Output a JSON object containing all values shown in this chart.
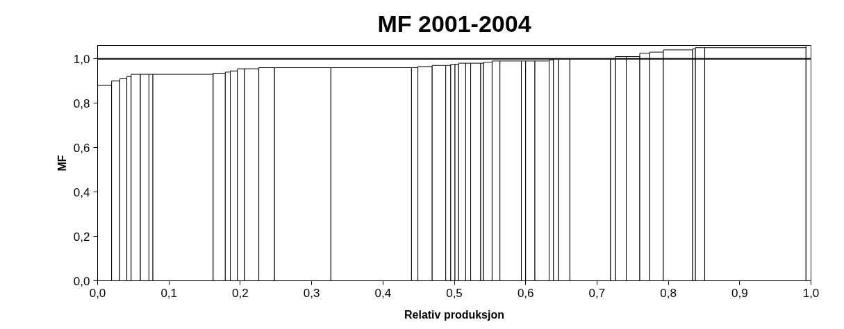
{
  "chart_data": {
    "type": "histogram",
    "title": "MF 2001-2004",
    "xlabel": "Relativ produksjon",
    "ylabel": "MF",
    "bins": [
      0,
      0.0196,
      0.031,
      0.041,
      0.047,
      0.06,
      0.072,
      0.0775,
      0.162,
      0.179,
      0.186,
      0.196,
      0.206,
      0.226,
      0.248,
      0.327,
      0.44,
      0.449,
      0.469,
      0.488,
      0.495,
      0.501,
      0.506,
      0.516,
      0.523,
      0.537,
      0.541,
      0.553,
      0.564,
      0.594,
      0.6,
      0.613,
      0.633,
      0.639,
      0.646,
      0.662,
      0.719,
      0.726,
      0.741,
      0.76,
      0.774,
      0.793,
      0.834,
      0.838,
      0.851,
      0.993,
      1.0
    ],
    "values": [
      0.88,
      0.9,
      0.91,
      0.92,
      0.93,
      0.93,
      0.93,
      0.93,
      0.935,
      0.94,
      0.945,
      0.955,
      0.955,
      0.96,
      0.96,
      0.96,
      0.96,
      0.965,
      0.97,
      0.97,
      0.975,
      0.975,
      0.98,
      0.98,
      0.98,
      0.98,
      0.985,
      0.99,
      0.99,
      0.99,
      0.99,
      0.99,
      0.995,
      1.0,
      1.0,
      1.0,
      1.0,
      1.01,
      1.01,
      1.025,
      1.03,
      1.04,
      1.045,
      1.05,
      1.05,
      1.06
    ],
    "color": "#ffffff",
    "xlim": [
      0,
      1.0
    ],
    "ylim": [
      0,
      1.06
    ],
    "xticks": [
      {
        "value": 0,
        "label": "0,0"
      },
      {
        "value": 0.1,
        "label": "0,1"
      },
      {
        "value": 0.2,
        "label": "0,2"
      },
      {
        "value": 0.3,
        "label": "0,3"
      },
      {
        "value": 0.4,
        "label": "0,4"
      },
      {
        "value": 0.5,
        "label": "0,5"
      },
      {
        "value": 0.6,
        "label": "0,6"
      },
      {
        "value": 0.7,
        "label": "0,7"
      },
      {
        "value": 0.8,
        "label": "0,8"
      },
      {
        "value": 0.9,
        "label": "0,9"
      },
      {
        "value": 1.0,
        "label": "1,0"
      }
    ],
    "yticks": [
      {
        "value": 0,
        "label": "0,0"
      },
      {
        "value": 0.2,
        "label": "0,2"
      },
      {
        "value": 0.4,
        "label": "0,4"
      },
      {
        "value": 0.6,
        "label": "0,6"
      },
      {
        "value": 0.8,
        "label": "0,8"
      },
      {
        "value": 1.0,
        "label": "1,0"
      }
    ],
    "ref_lines": [
      {
        "axis": "y",
        "value": 1.0,
        "color": "#000000"
      }
    ],
    "grid": false
  }
}
